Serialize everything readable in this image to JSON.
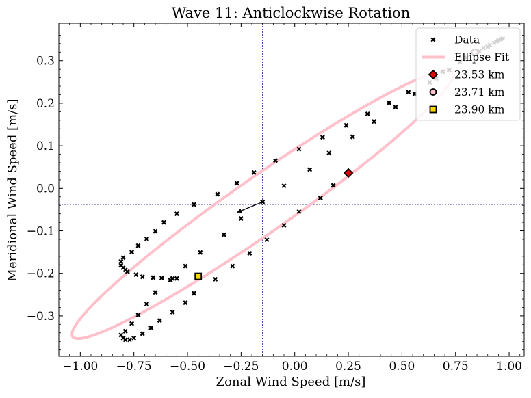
{
  "chart_data": {
    "type": "scatter",
    "title": "Wave 11: Anticlockwise Rotation",
    "xlabel": "Zonal Wind Speed [m/s]",
    "ylabel": "Meridional Wind Speed [m/s]",
    "xlim": [
      -1.1,
      1.07
    ],
    "ylim": [
      -0.395,
      0.388
    ],
    "xticks": [
      -1.0,
      -0.75,
      -0.5,
      -0.25,
      0.0,
      0.25,
      0.5,
      0.75,
      1.0
    ],
    "xtick_labels": [
      "−1.00",
      "−0.75",
      "−0.50",
      "−0.25",
      "0.00",
      "0.25",
      "0.50",
      "0.75",
      "1.00"
    ],
    "yticks": [
      -0.3,
      -0.2,
      -0.1,
      0.0,
      0.1,
      0.2,
      0.3
    ],
    "ytick_labels": [
      "−0.3",
      "−0.2",
      "−0.1",
      "0.0",
      "0.1",
      "0.2",
      "0.3"
    ],
    "grid": false,
    "legend_position": "top-right",
    "legend": [
      {
        "label": "Data",
        "marker": "x"
      },
      {
        "label": "Ellipse Fit",
        "marker": "line"
      },
      {
        "label": "23.53 km",
        "marker": "diamond"
      },
      {
        "label": "23.71 km",
        "marker": "circle"
      },
      {
        "label": "23.90 km",
        "marker": "square"
      }
    ],
    "reference_lines": {
      "x": -0.15,
      "y": -0.038
    },
    "ellipse": {
      "center": [
        -0.15,
        -0.038
      ],
      "semi_major": 0.94,
      "semi_minor": 0.075,
      "angle_deg": 19.08,
      "color": "#ffc0cb"
    },
    "arrow": {
      "from": [
        -0.15,
        -0.032
      ],
      "to": [
        -0.27,
        -0.057
      ]
    },
    "special_points": [
      {
        "label": "23.53 km",
        "x": 0.25,
        "y": 0.036,
        "marker": "diamond",
        "color": "#e00000"
      },
      {
        "label": "23.71 km",
        "x": 0.84,
        "y": 0.32,
        "marker": "circle",
        "color": "#ffc0cb"
      },
      {
        "label": "23.90 km",
        "x": -0.45,
        "y": -0.207,
        "marker": "square",
        "color": "#ffd700"
      }
    ],
    "data_points": [
      {
        "x": -0.81,
        "y": -0.345
      },
      {
        "x": -0.8,
        "y": -0.352
      },
      {
        "x": -0.79,
        "y": -0.356
      },
      {
        "x": -0.77,
        "y": -0.356
      },
      {
        "x": -0.79,
        "y": -0.336
      },
      {
        "x": -0.76,
        "y": -0.318
      },
      {
        "x": -0.75,
        "y": -0.352
      },
      {
        "x": -0.73,
        "y": -0.298
      },
      {
        "x": -0.71,
        "y": -0.342
      },
      {
        "x": -0.69,
        "y": -0.272
      },
      {
        "x": -0.67,
        "y": -0.328
      },
      {
        "x": -0.65,
        "y": -0.245
      },
      {
        "x": -0.63,
        "y": -0.311
      },
      {
        "x": -0.57,
        "y": -0.291
      },
      {
        "x": -0.51,
        "y": -0.269
      },
      {
        "x": -0.47,
        "y": -0.247
      },
      {
        "x": -0.55,
        "y": -0.212
      },
      {
        "x": -0.51,
        "y": -0.183
      },
      {
        "x": -0.44,
        "y": -0.151
      },
      {
        "x": -0.81,
        "y": -0.172
      },
      {
        "x": -0.81,
        "y": -0.181
      },
      {
        "x": -0.8,
        "y": -0.187
      },
      {
        "x": -0.79,
        "y": -0.192
      },
      {
        "x": -0.8,
        "y": -0.163
      },
      {
        "x": -0.78,
        "y": -0.196
      },
      {
        "x": -0.76,
        "y": -0.15
      },
      {
        "x": -0.74,
        "y": -0.203
      },
      {
        "x": -0.73,
        "y": -0.135
      },
      {
        "x": -0.71,
        "y": -0.208
      },
      {
        "x": -0.69,
        "y": -0.119
      },
      {
        "x": -0.66,
        "y": -0.21
      },
      {
        "x": -0.65,
        "y": -0.101
      },
      {
        "x": -0.62,
        "y": -0.211
      },
      {
        "x": -0.61,
        "y": -0.08
      },
      {
        "x": -0.58,
        "y": -0.216
      },
      {
        "x": -0.57,
        "y": -0.212
      },
      {
        "x": -0.55,
        "y": -0.06
      },
      {
        "x": -0.47,
        "y": -0.038
      },
      {
        "x": -0.37,
        "y": -0.214
      },
      {
        "x": -0.36,
        "y": -0.014
      },
      {
        "x": -0.33,
        "y": -0.109
      },
      {
        "x": -0.29,
        "y": -0.183
      },
      {
        "x": -0.27,
        "y": 0.012
      },
      {
        "x": -0.25,
        "y": -0.071
      },
      {
        "x": -0.21,
        "y": -0.153
      },
      {
        "x": -0.19,
        "y": 0.037
      },
      {
        "x": -0.15,
        "y": -0.032
      },
      {
        "x": -0.13,
        "y": -0.121
      },
      {
        "x": -0.09,
        "y": 0.065
      },
      {
        "x": -0.05,
        "y": 0.006
      },
      {
        "x": -0.05,
        "y": -0.087
      },
      {
        "x": 0.02,
        "y": 0.092
      },
      {
        "x": 0.02,
        "y": -0.055
      },
      {
        "x": 0.07,
        "y": 0.044
      },
      {
        "x": 0.12,
        "y": -0.023
      },
      {
        "x": 0.13,
        "y": 0.12
      },
      {
        "x": 0.16,
        "y": 0.083
      },
      {
        "x": 0.18,
        "y": 0.007
      },
      {
        "x": 0.24,
        "y": 0.148
      },
      {
        "x": 0.27,
        "y": 0.121
      },
      {
        "x": 0.34,
        "y": 0.175
      },
      {
        "x": 0.37,
        "y": 0.157
      },
      {
        "x": 0.44,
        "y": 0.201
      },
      {
        "x": 0.47,
        "y": 0.191
      },
      {
        "x": 0.53,
        "y": 0.226
      },
      {
        "x": 0.56,
        "y": 0.222
      },
      {
        "x": 0.63,
        "y": 0.249
      },
      {
        "x": 0.66,
        "y": 0.258
      },
      {
        "x": 0.69,
        "y": 0.274
      },
      {
        "x": 0.72,
        "y": 0.278
      },
      {
        "x": 0.77,
        "y": 0.297
      },
      {
        "x": 0.8,
        "y": 0.307
      },
      {
        "x": 0.85,
        "y": 0.32
      },
      {
        "x": 0.86,
        "y": 0.322
      },
      {
        "x": 0.88,
        "y": 0.33
      },
      {
        "x": 0.9,
        "y": 0.333
      },
      {
        "x": 0.91,
        "y": 0.337
      },
      {
        "x": 0.93,
        "y": 0.342
      },
      {
        "x": 0.94,
        "y": 0.345
      },
      {
        "x": 0.95,
        "y": 0.348
      },
      {
        "x": 0.96,
        "y": 0.35
      },
      {
        "x": 0.97,
        "y": 0.352
      }
    ]
  }
}
